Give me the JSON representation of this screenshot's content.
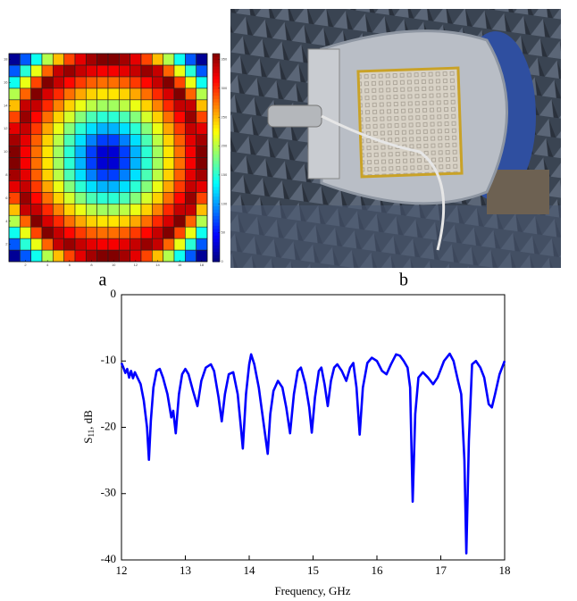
{
  "chart_data": [
    {
      "type": "heatmap",
      "colormap": "jet",
      "cell_border": "#222222",
      "xlim": [
        0.5,
        18.5
      ],
      "ylim": [
        0.5,
        18.5
      ],
      "xticks": [
        2,
        4,
        6,
        8,
        10,
        12,
        14,
        16,
        18
      ],
      "yticks": [
        2,
        4,
        6,
        8,
        10,
        12,
        14,
        16,
        18
      ],
      "zlim": [
        0,
        360
      ],
      "colorbar_ticks": [
        0,
        50,
        100,
        150,
        200,
        250,
        300,
        350
      ],
      "z": [
        [
          8,
          76,
          140,
          198,
          248,
          291,
          324,
          347,
          359,
          359,
          347,
          324,
          291,
          248,
          198,
          140,
          76,
          8
        ],
        [
          76,
          149,
          218,
          280,
          335,
          351,
          335,
          324,
          318,
          318,
          324,
          335,
          351,
          335,
          280,
          218,
          149,
          76
        ],
        [
          140,
          218,
          291,
          359,
          335,
          313,
          295,
          282,
          276,
          276,
          282,
          295,
          313,
          335,
          359,
          291,
          218,
          140
        ],
        [
          198,
          280,
          359,
          329,
          301,
          276,
          256,
          241,
          234,
          234,
          241,
          256,
          276,
          301,
          329,
          359,
          280,
          198
        ],
        [
          248,
          335,
          335,
          301,
          269,
          241,
          218,
          201,
          192,
          192,
          201,
          218,
          241,
          269,
          301,
          335,
          335,
          248
        ],
        [
          291,
          351,
          313,
          276,
          241,
          210,
          182,
          161,
          150,
          150,
          161,
          182,
          210,
          241,
          276,
          313,
          351,
          291
        ],
        [
          324,
          335,
          295,
          256,
          218,
          182,
          150,
          124,
          108,
          108,
          124,
          150,
          182,
          218,
          256,
          295,
          335,
          324
        ],
        [
          347,
          324,
          282,
          241,
          201,
          161,
          124,
          90,
          67,
          67,
          90,
          124,
          161,
          201,
          241,
          282,
          324,
          347
        ],
        [
          359,
          318,
          276,
          234,
          192,
          150,
          108,
          67,
          30,
          30,
          67,
          108,
          150,
          192,
          234,
          276,
          318,
          359
        ],
        [
          359,
          318,
          276,
          234,
          192,
          150,
          108,
          67,
          30,
          30,
          67,
          108,
          150,
          192,
          234,
          276,
          318,
          359
        ],
        [
          347,
          324,
          282,
          241,
          201,
          161,
          124,
          90,
          67,
          67,
          90,
          124,
          161,
          201,
          241,
          282,
          324,
          347
        ],
        [
          324,
          335,
          295,
          256,
          218,
          182,
          150,
          124,
          108,
          108,
          124,
          150,
          182,
          218,
          256,
          295,
          335,
          324
        ],
        [
          291,
          351,
          313,
          276,
          241,
          210,
          182,
          161,
          150,
          150,
          161,
          182,
          210,
          241,
          276,
          313,
          351,
          291
        ],
        [
          248,
          335,
          335,
          301,
          269,
          241,
          218,
          201,
          192,
          192,
          201,
          218,
          241,
          269,
          301,
          335,
          335,
          248
        ],
        [
          198,
          280,
          359,
          329,
          301,
          276,
          256,
          241,
          234,
          234,
          241,
          256,
          276,
          301,
          329,
          359,
          280,
          198
        ],
        [
          140,
          218,
          291,
          359,
          335,
          313,
          295,
          282,
          276,
          276,
          282,
          295,
          313,
          335,
          359,
          291,
          218,
          140
        ],
        [
          76,
          149,
          218,
          280,
          335,
          351,
          335,
          324,
          318,
          318,
          324,
          335,
          351,
          335,
          280,
          218,
          149,
          76
        ],
        [
          8,
          76,
          140,
          198,
          248,
          291,
          324,
          347,
          359,
          359,
          347,
          324,
          291,
          248,
          198,
          140,
          76,
          8
        ]
      ]
    },
    {
      "type": "line",
      "xlabel": "Frequency, GHz",
      "ylabel": [
        "S",
        "11",
        ", dB"
      ],
      "xlim": [
        12,
        18
      ],
      "ylim": [
        -40,
        0
      ],
      "xticks": [
        12,
        13,
        14,
        15,
        16,
        17,
        18
      ],
      "yticks": [
        -40,
        -30,
        -20,
        -10,
        0
      ],
      "x": [
        12.0,
        12.03,
        12.06,
        12.09,
        12.12,
        12.15,
        12.18,
        12.21,
        12.25,
        12.3,
        12.35,
        12.4,
        12.43,
        12.46,
        12.5,
        12.55,
        12.6,
        12.65,
        12.72,
        12.78,
        12.81,
        12.85,
        12.9,
        12.95,
        13.0,
        13.05,
        13.12,
        13.19,
        13.25,
        13.32,
        13.4,
        13.45,
        13.52,
        13.57,
        13.62,
        13.68,
        13.75,
        13.82,
        13.87,
        13.9,
        13.95,
        14.0,
        14.03,
        14.08,
        14.15,
        14.22,
        14.29,
        14.33,
        14.38,
        14.45,
        14.52,
        14.58,
        14.64,
        14.7,
        14.76,
        14.81,
        14.88,
        14.94,
        14.98,
        15.03,
        15.09,
        15.13,
        15.18,
        15.23,
        15.28,
        15.33,
        15.38,
        15.45,
        15.52,
        15.58,
        15.63,
        15.68,
        15.73,
        15.78,
        15.85,
        15.92,
        16.0,
        16.08,
        16.15,
        16.22,
        16.3,
        16.36,
        16.42,
        16.48,
        16.52,
        16.56,
        16.6,
        16.65,
        16.72,
        16.8,
        16.88,
        16.95,
        17.05,
        17.14,
        17.2,
        17.27,
        17.32,
        17.37,
        17.4,
        17.44,
        17.49,
        17.55,
        17.62,
        17.68,
        17.75,
        17.8,
        17.85,
        17.92,
        18.0
      ],
      "series": [
        {
          "color": "#0000ff",
          "values": [
            -10.3,
            -11,
            -11.8,
            -11.2,
            -12.5,
            -11.5,
            -12.6,
            -11.7,
            -12.5,
            -13.5,
            -16,
            -20,
            -24.9,
            -19,
            -14,
            -11.5,
            -11.2,
            -12.5,
            -15,
            -18.5,
            -17.5,
            -20.9,
            -15,
            -12,
            -11.2,
            -12,
            -14.5,
            -16.8,
            -13,
            -11,
            -10.5,
            -11.5,
            -15.5,
            -19.1,
            -15,
            -12,
            -11.7,
            -15,
            -20,
            -23.2,
            -15,
            -10.5,
            -9.0,
            -10.5,
            -14,
            -19,
            -24,
            -18,
            -14.5,
            -13,
            -14,
            -17,
            -20.9,
            -15,
            -11.5,
            -11,
            -13.5,
            -17,
            -20.8,
            -15.5,
            -11.5,
            -11,
            -13.5,
            -16.8,
            -13,
            -11,
            -10.5,
            -11.5,
            -13,
            -11,
            -10.3,
            -14,
            -21.1,
            -14,
            -10.3,
            -9.5,
            -10,
            -11.5,
            -12,
            -10.5,
            -9,
            -9.2,
            -10,
            -11,
            -14,
            -31.2,
            -18,
            -12.5,
            -11.7,
            -12.5,
            -13.5,
            -12.5,
            -10,
            -8.9,
            -10,
            -13,
            -15,
            -25,
            -39,
            -22,
            -10.5,
            -10,
            -11,
            -12.5,
            -16.5,
            -17,
            -15,
            -12,
            -10
          ]
        }
      ]
    }
  ],
  "panel_labels": [
    "a",
    "b"
  ]
}
